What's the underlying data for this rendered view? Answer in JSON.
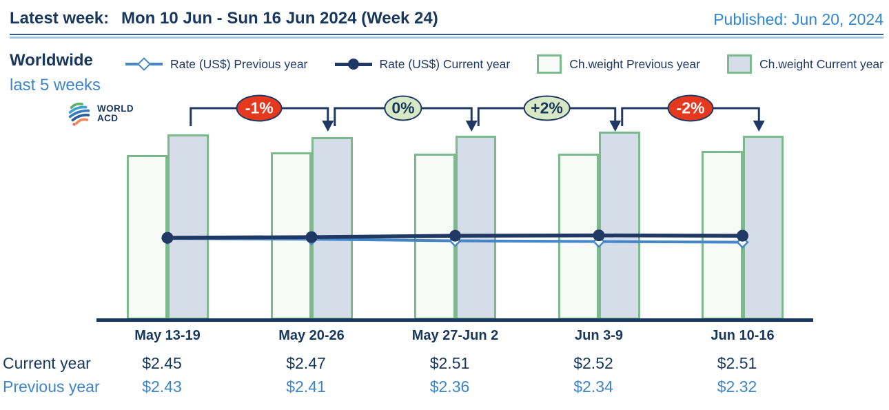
{
  "header": {
    "latest_week_label": "Latest week:",
    "latest_week_value": "Mon 10 Jun - Sun 16 Jun 2024 (Week 24)",
    "published": "Published: Jun 20, 2024"
  },
  "panel": {
    "region": "Worldwide",
    "subtitle": "last 5 weeks"
  },
  "logo": {
    "line1": "WORLD",
    "line2": "ACD"
  },
  "legend": [
    {
      "label": "Rate (US$) Previous year",
      "marker": "line-open-diamond"
    },
    {
      "label": "Rate (US$) Current year",
      "marker": "line-filled-circle"
    },
    {
      "label": "Ch.weight Previous year",
      "marker": "swatch-light"
    },
    {
      "label": "Ch.weight Current year",
      "marker": "swatch-blue"
    }
  ],
  "colors": {
    "navy": "#1F3864",
    "navy_text": "#17375E",
    "accent_blue": "#3D85C8",
    "published_blue": "#2E86D0",
    "rate_prev_line": "#4486C8",
    "bar_border_green": "#7CBA8D",
    "bar_prev_fill": "#F7FAF7",
    "bar_curr_fill": "#D5DDE9",
    "badge_red": "#E5391F",
    "badge_green_fill": "#D8E9C6",
    "rule_light_blue": "#A3C6E8"
  },
  "chart_data": {
    "type": "combo (grouped bars for chargeable weight + lines for rate US$)",
    "title": "Worldwide last 5 weeks",
    "categories": [
      "May 13-19",
      "May 20-26",
      "May 27-Jun 2",
      "Jun 3-9",
      "Jun 10-16"
    ],
    "series": [
      {
        "name": "Rate (US$) Previous year",
        "type": "line",
        "marker": "open-diamond",
        "color": "#4486C8",
        "values_usd": [
          2.43,
          2.41,
          2.36,
          2.34,
          2.32
        ]
      },
      {
        "name": "Rate (US$) Current year",
        "type": "line",
        "marker": "filled-circle",
        "color": "#1F3864",
        "values_usd": [
          2.45,
          2.47,
          2.51,
          2.52,
          2.51
        ]
      },
      {
        "name": "Ch.weight Previous year",
        "type": "bar",
        "color": "#F7FAF7",
        "border": "#7CBA8D",
        "values_relative_height": [
          239,
          243,
          241,
          241,
          245
        ]
      },
      {
        "name": "Ch.weight Current year",
        "type": "bar",
        "color": "#D5DDE9",
        "border": "#7CBA8D",
        "values_relative_height": [
          269,
          265,
          267,
          273,
          267
        ]
      }
    ],
    "weight_change_badges": [
      {
        "text": "-1%",
        "style": "red",
        "bg": "#E5391F",
        "fg": "#FFFFFF"
      },
      {
        "text": "0%",
        "style": "green",
        "bg": "#D8E9C6",
        "fg": "#17375E"
      },
      {
        "text": "+2%",
        "style": "green",
        "bg": "#D8E9C6",
        "fg": "#17375E"
      },
      {
        "text": "-2%",
        "style": "red",
        "bg": "#E5391F",
        "fg": "#FFFFFF"
      }
    ],
    "y_axis": "none (no visible scale)",
    "grid": "off",
    "legend_position": "top"
  },
  "table": {
    "rows": [
      {
        "label": "Current year",
        "values": [
          "$2.45",
          "$2.47",
          "$2.51",
          "$2.52",
          "$2.51"
        ]
      },
      {
        "label": "Previous year",
        "values": [
          "$2.43",
          "$2.41",
          "$2.36",
          "$2.34",
          "$2.32"
        ]
      }
    ]
  }
}
